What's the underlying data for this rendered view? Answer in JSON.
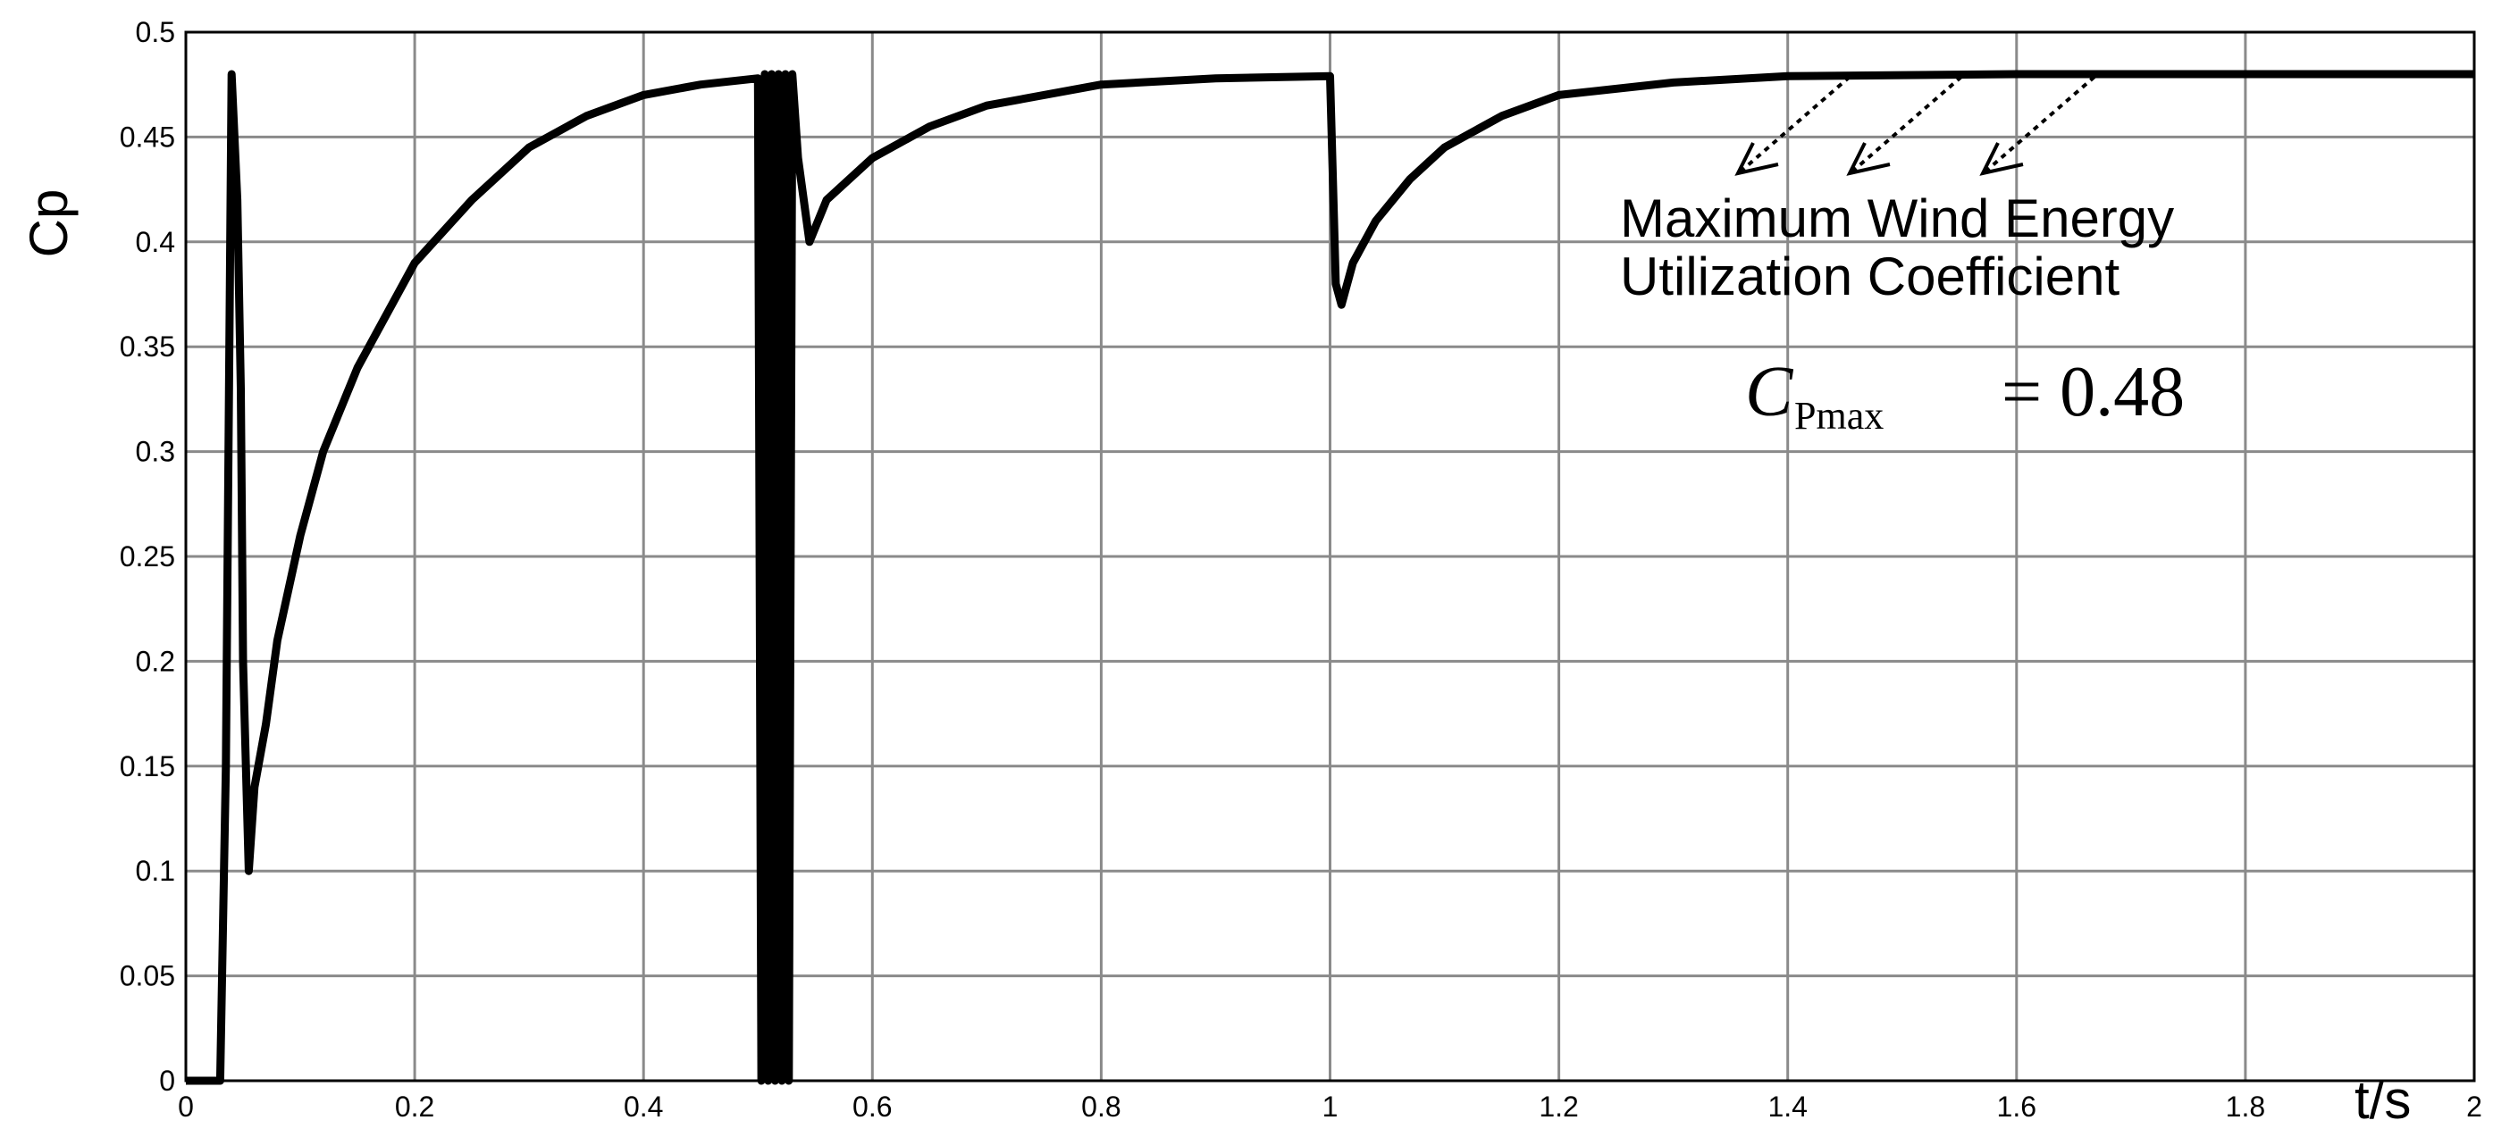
{
  "chart_data": {
    "type": "line",
    "ylabel": "Cp",
    "xlabel": "t/s",
    "annotation": [
      "Maximum Wind Energy",
      "Utilization Coefficient"
    ],
    "formula": {
      "symbol": "C",
      "subscript": "Pmax",
      "text": "= 0.48"
    },
    "xlim": [
      0,
      2
    ],
    "ylim": [
      0,
      0.5
    ],
    "xticks": [
      0,
      0.2,
      0.4,
      0.6,
      0.8,
      1,
      1.2,
      1.4,
      1.6,
      1.8,
      2
    ],
    "yticks": [
      0,
      0.05,
      0.1,
      0.15,
      0.2,
      0.25,
      0.3,
      0.35,
      0.4,
      0.45,
      0.5
    ],
    "grid": true,
    "series": [
      {
        "name": "Cp",
        "color": "#000000",
        "x": [
          0,
          0.03,
          0.035,
          0.04,
          0.045,
          0.048,
          0.05,
          0.055,
          0.06,
          0.07,
          0.08,
          0.1,
          0.12,
          0.15,
          0.2,
          0.25,
          0.3,
          0.35,
          0.4,
          0.45,
          0.5,
          0.503,
          0.506,
          0.509,
          0.512,
          0.515,
          0.518,
          0.521,
          0.524,
          0.527,
          0.53,
          0.535,
          0.545,
          0.56,
          0.6,
          0.65,
          0.7,
          0.8,
          0.9,
          1.0,
          1.005,
          1.01,
          1.02,
          1.04,
          1.07,
          1.1,
          1.15,
          1.2,
          1.3,
          1.4,
          1.6,
          2.0
        ],
        "values": [
          0,
          0,
          0.15,
          0.48,
          0.42,
          0.33,
          0.2,
          0.1,
          0.14,
          0.17,
          0.21,
          0.26,
          0.3,
          0.34,
          0.39,
          0.42,
          0.445,
          0.46,
          0.47,
          0.475,
          0.478,
          0,
          0.48,
          0,
          0.48,
          0,
          0.48,
          0,
          0.48,
          0,
          0.48,
          0.44,
          0.4,
          0.42,
          0.44,
          0.455,
          0.465,
          0.475,
          0.478,
          0.479,
          0.38,
          0.37,
          0.39,
          0.41,
          0.43,
          0.445,
          0.46,
          0.47,
          0.476,
          0.479,
          0.48,
          0.48
        ]
      }
    ]
  }
}
